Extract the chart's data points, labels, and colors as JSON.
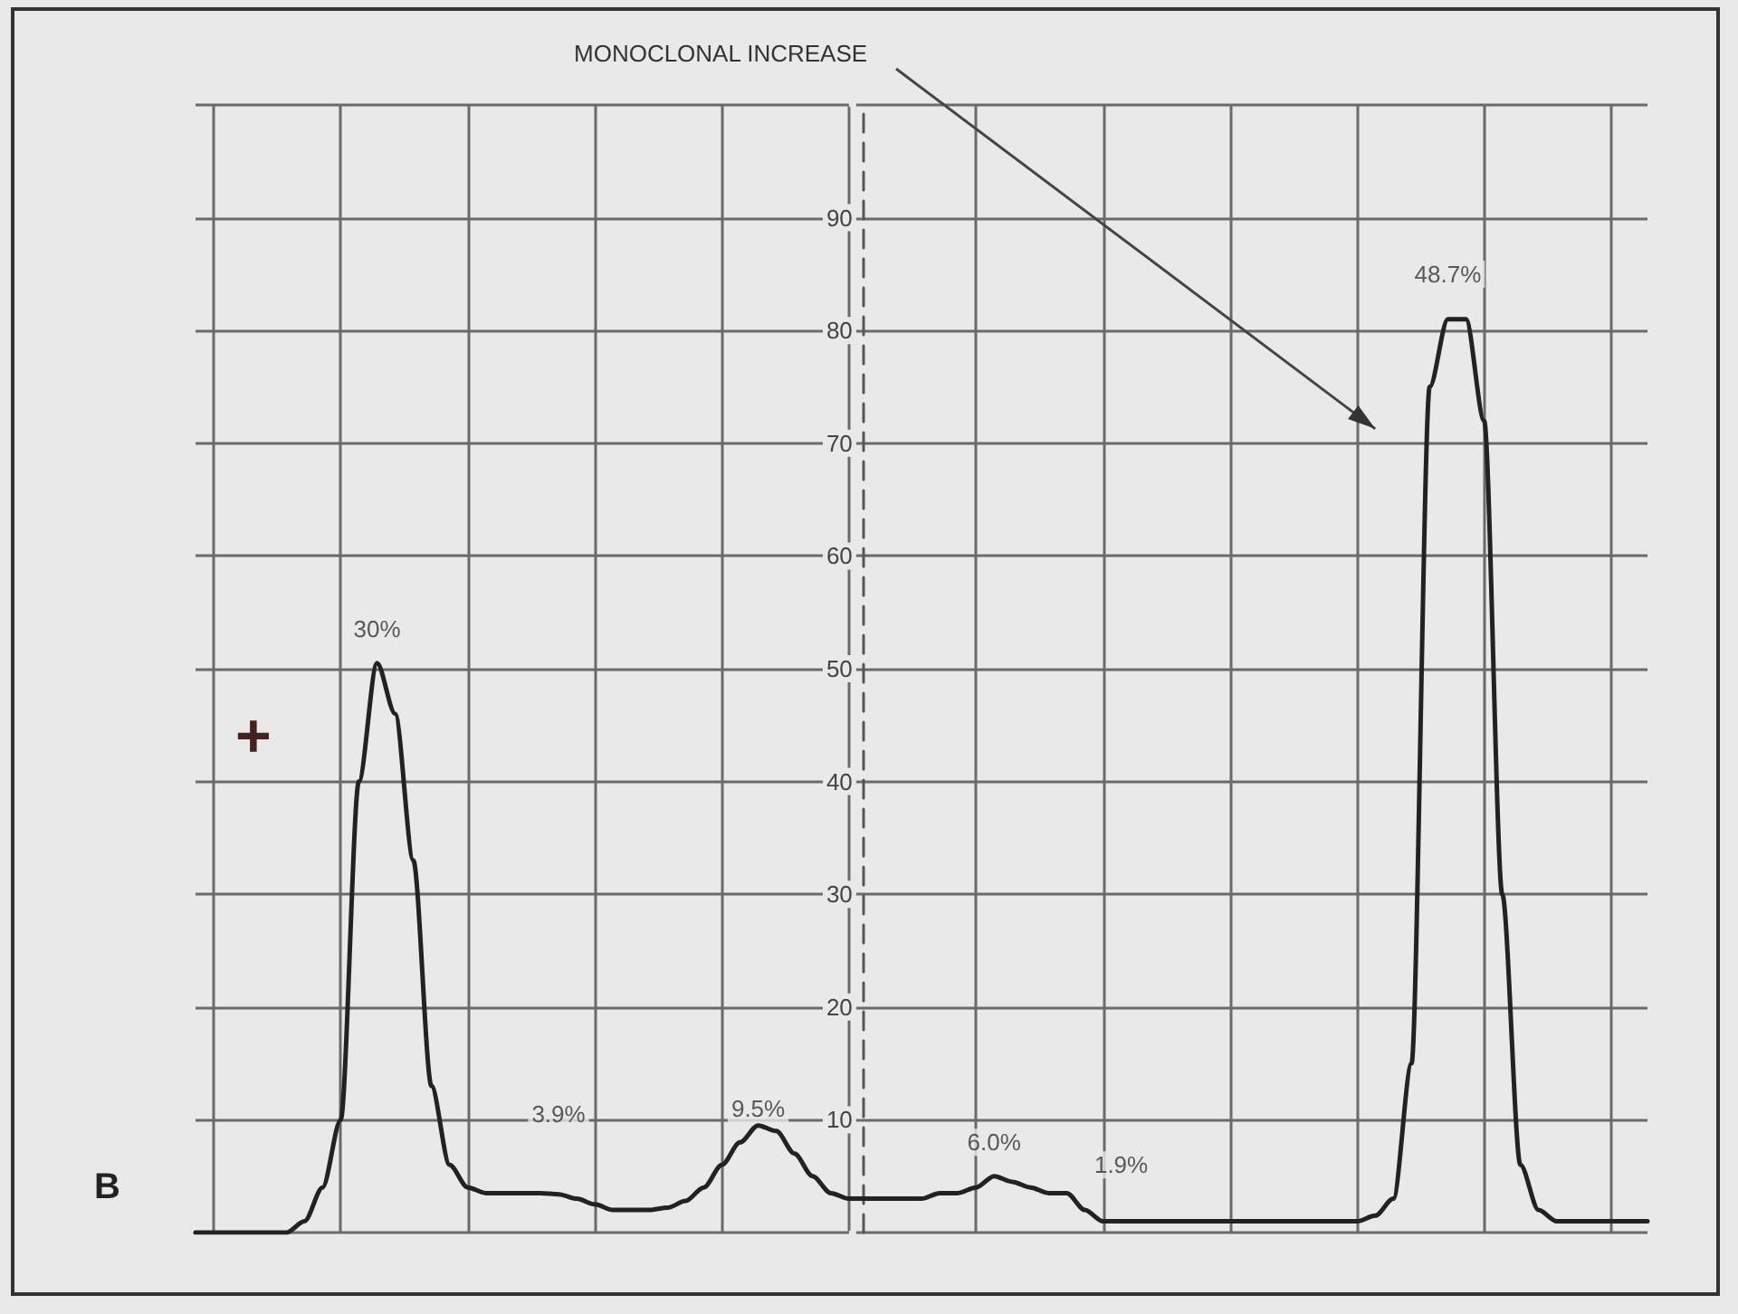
{
  "chart_data": {
    "type": "line",
    "title": "MONOCLONAL INCREASE",
    "categories": [
      null,
      null,
      null,
      null,
      null,
      null,
      null,
      null,
      null,
      null,
      null,
      null,
      null,
      null,
      null,
      null,
      null,
      null,
      null,
      null,
      null,
      null,
      null,
      null,
      null,
      null,
      null,
      null,
      null,
      null,
      null,
      null,
      null,
      null,
      null,
      null,
      null,
      null,
      null,
      null,
      null,
      null,
      null,
      null,
      null,
      null,
      null,
      null,
      null,
      null,
      null,
      null,
      null,
      null,
      null,
      null,
      null,
      null,
      null,
      null,
      null,
      null,
      null,
      null,
      null,
      null,
      null,
      null,
      null,
      null,
      null,
      null,
      null,
      null,
      null,
      null,
      null,
      null,
      null,
      null,
      null
    ],
    "series": [
      {
        "color": "#222222",
        "values": [
          0,
          0,
          0,
          0,
          0,
          0,
          1,
          4,
          10,
          40,
          50.5,
          46,
          33,
          13,
          6,
          4,
          3.5,
          3.5,
          3.5,
          3.5,
          3.4,
          3,
          2.5,
          2,
          2,
          2,
          2.2,
          2.8,
          4,
          6,
          8,
          9.5,
          9,
          7,
          5,
          3.5,
          3,
          3,
          3,
          3,
          3,
          3.5,
          3.5,
          4,
          5,
          4.5,
          4,
          3.5,
          3.5,
          2,
          1,
          1,
          1,
          1,
          1,
          1,
          1,
          1,
          1,
          1,
          1,
          1,
          1,
          1,
          1,
          1.5,
          3,
          15,
          75,
          81,
          81,
          72,
          30,
          6,
          2,
          1,
          1,
          1,
          1,
          1,
          1
        ]
      }
    ],
    "ylim": [
      0,
      100
    ],
    "yticks": [
      {
        "value": 0,
        "label": null
      },
      10,
      20,
      30,
      40,
      50,
      60,
      70,
      80,
      90,
      {
        "value": 100,
        "label": null
      }
    ],
    "tick_labels": "y",
    "grid": true,
    "marker": "none",
    "line_style": "solid",
    "annotations": [
      "30%",
      "3.9%",
      "9.5%",
      "6.0%",
      "1.9%",
      "48.7%",
      "B",
      "+"
    ]
  }
}
